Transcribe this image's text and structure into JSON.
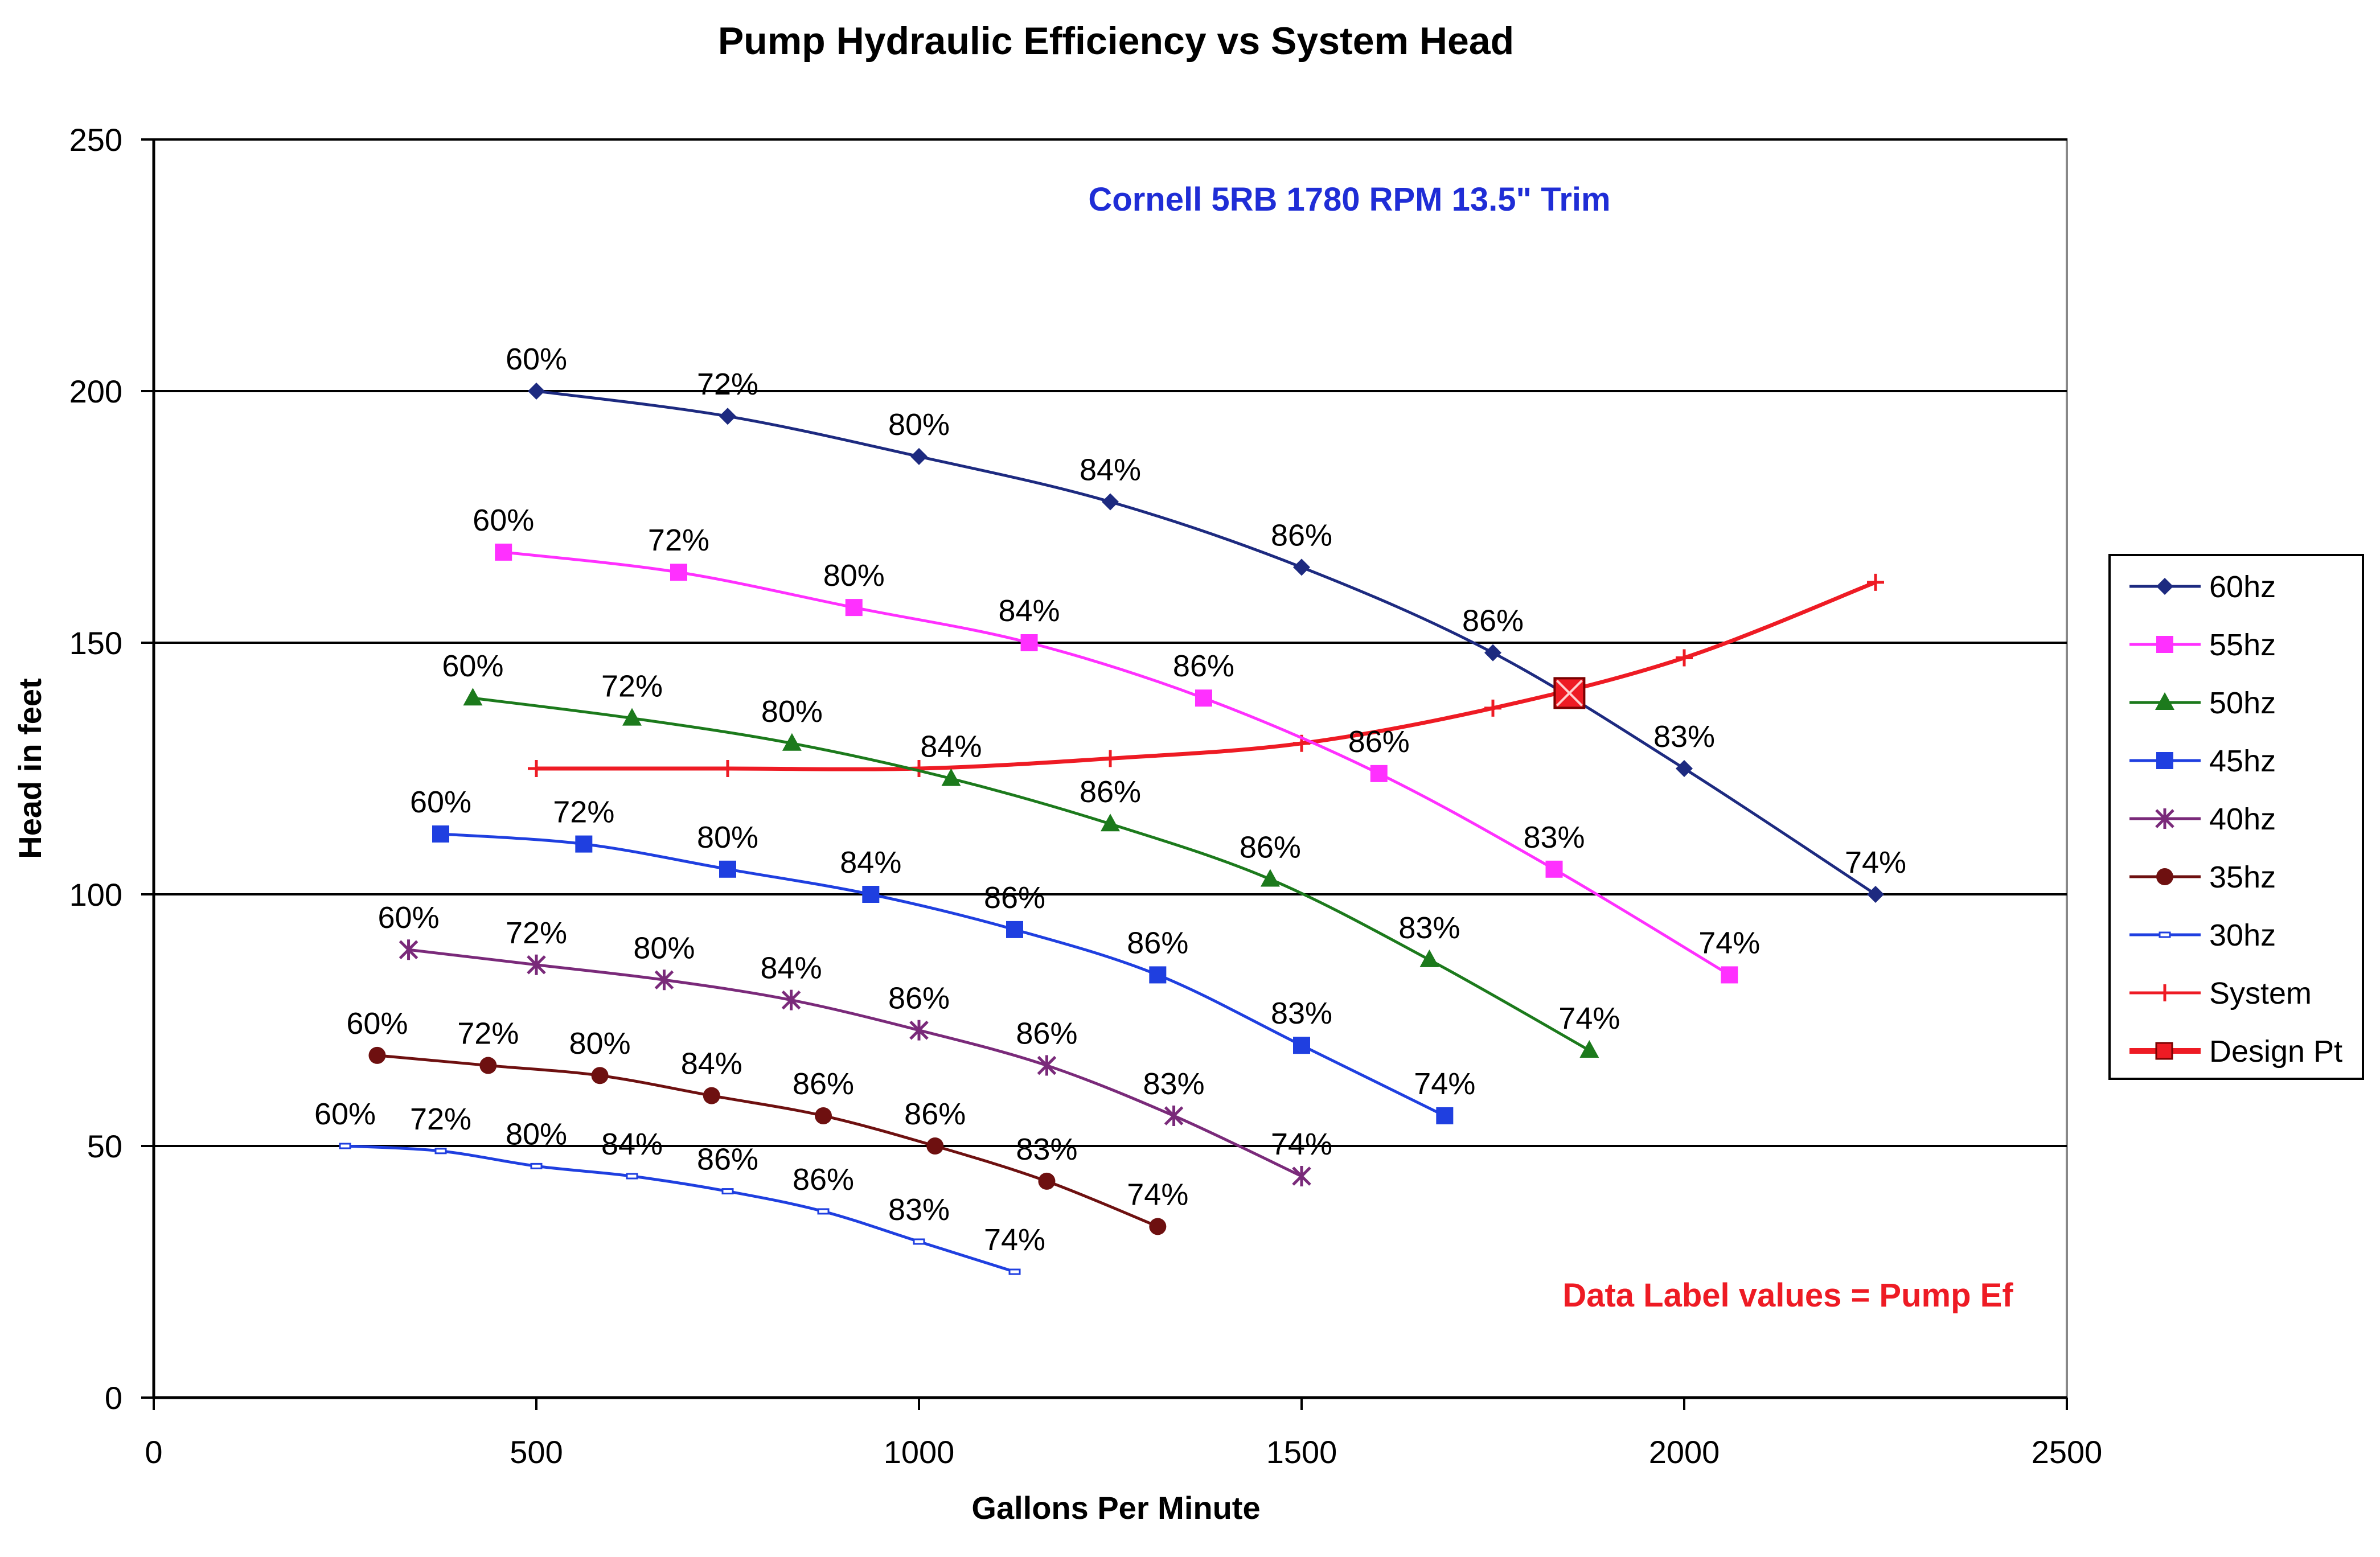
{
  "chart_data": {
    "type": "line",
    "title": "Pump Hydraulic Efficiency vs System Head",
    "xlabel": "Gallons Per Minute",
    "ylabel": "Head in feet",
    "xlim": [
      0,
      2500
    ],
    "ylim": [
      0,
      250
    ],
    "xticks": [
      0,
      500,
      1000,
      1500,
      2000,
      2500
    ],
    "yticks": [
      0,
      50,
      100,
      150,
      200,
      250
    ],
    "grid": "horizontal major lines",
    "legend_position": "right",
    "annotations": [
      {
        "text": "Cornell 5RB 1780 RPM 13.5\" Trim",
        "x": 1570,
        "y": 237,
        "color": "#1f2dd6"
      },
      {
        "text": "Data Label values = Pump Ef",
        "x": 1820,
        "y": 20,
        "color": "#ee1b24"
      }
    ],
    "series": [
      {
        "name": "60hz",
        "color": "#1d2a80",
        "marker": "diamond",
        "points": [
          [
            500,
            200
          ],
          [
            750,
            195
          ],
          [
            1000,
            187
          ],
          [
            1250,
            178
          ],
          [
            1500,
            165
          ],
          [
            1750,
            148
          ],
          [
            2000,
            125
          ],
          [
            2250,
            100
          ]
        ],
        "labels": [
          "60%",
          "72%",
          "80%",
          "84%",
          "86%",
          "86%",
          "83%",
          "74%"
        ]
      },
      {
        "name": "55hz",
        "color": "#ff30ff",
        "marker": "square",
        "points": [
          [
            457,
            168
          ],
          [
            686,
            164
          ],
          [
            915,
            157
          ],
          [
            1144,
            150
          ],
          [
            1372,
            139
          ],
          [
            1601,
            124
          ],
          [
            1830,
            105
          ],
          [
            2059,
            84
          ]
        ],
        "labels": [
          "60%",
          "72%",
          "80%",
          "84%",
          "86%",
          "86%",
          "83%",
          "74%"
        ]
      },
      {
        "name": "50hz",
        "color": "#1c7a1c",
        "marker": "triangle",
        "points": [
          [
            417,
            139
          ],
          [
            625,
            135
          ],
          [
            834,
            130
          ],
          [
            1042,
            123
          ],
          [
            1250,
            114
          ],
          [
            1459,
            103
          ],
          [
            1667,
            87
          ],
          [
            1876,
            69
          ]
        ],
        "labels": [
          "60%",
          "72%",
          "80%",
          "84%",
          "86%",
          "86%",
          "83%",
          "74%"
        ]
      },
      {
        "name": "45hz",
        "color": "#1f3fe0",
        "marker": "square",
        "points": [
          [
            375,
            112
          ],
          [
            562,
            110
          ],
          [
            750,
            105
          ],
          [
            937,
            100
          ],
          [
            1125,
            93
          ],
          [
            1312,
            84
          ],
          [
            1500,
            70
          ],
          [
            1687,
            56
          ]
        ],
        "labels": [
          "60%",
          "72%",
          "80%",
          "84%",
          "86%",
          "86%",
          "83%",
          "74%"
        ]
      },
      {
        "name": "40hz",
        "color": "#7a2a7a",
        "marker": "asterisk",
        "points": [
          [
            333,
            89
          ],
          [
            500,
            86
          ],
          [
            667,
            83
          ],
          [
            833,
            79
          ],
          [
            1000,
            73
          ],
          [
            1167,
            66
          ],
          [
            1333,
            56
          ],
          [
            1500,
            44
          ]
        ],
        "labels": [
          "60%",
          "72%",
          "80%",
          "84%",
          "86%",
          "86%",
          "83%",
          "74%"
        ]
      },
      {
        "name": "35hz",
        "color": "#6e1010",
        "marker": "circle",
        "points": [
          [
            292,
            68
          ],
          [
            437,
            66
          ],
          [
            583,
            64
          ],
          [
            729,
            60
          ],
          [
            875,
            56
          ],
          [
            1021,
            50
          ],
          [
            1167,
            43
          ],
          [
            1312,
            34
          ]
        ],
        "labels": [
          "60%",
          "72%",
          "80%",
          "84%",
          "86%",
          "86%",
          "83%",
          "74%"
        ]
      },
      {
        "name": "30hz",
        "color": "#1f3fe0",
        "marker": "dash",
        "points": [
          [
            250,
            50
          ],
          [
            375,
            49
          ],
          [
            500,
            46
          ],
          [
            625,
            44
          ],
          [
            750,
            41
          ],
          [
            875,
            37
          ],
          [
            1000,
            31
          ],
          [
            1125,
            25
          ]
        ],
        "labels": [
          "60%",
          "72%",
          "80%",
          "84%",
          "86%",
          "86%",
          "83%",
          "74%"
        ]
      },
      {
        "name": "System",
        "color": "#ee1b24",
        "marker": "plus",
        "points": [
          [
            500,
            125
          ],
          [
            750,
            125
          ],
          [
            1000,
            125
          ],
          [
            1250,
            127
          ],
          [
            1500,
            130
          ],
          [
            1750,
            137
          ],
          [
            2000,
            147
          ],
          [
            2250,
            162
          ]
        ],
        "labels": []
      },
      {
        "name": "Design Pt",
        "color": "#ee1b24",
        "marker": "boxx",
        "points": [
          [
            1850,
            140
          ]
        ],
        "labels": []
      }
    ]
  }
}
